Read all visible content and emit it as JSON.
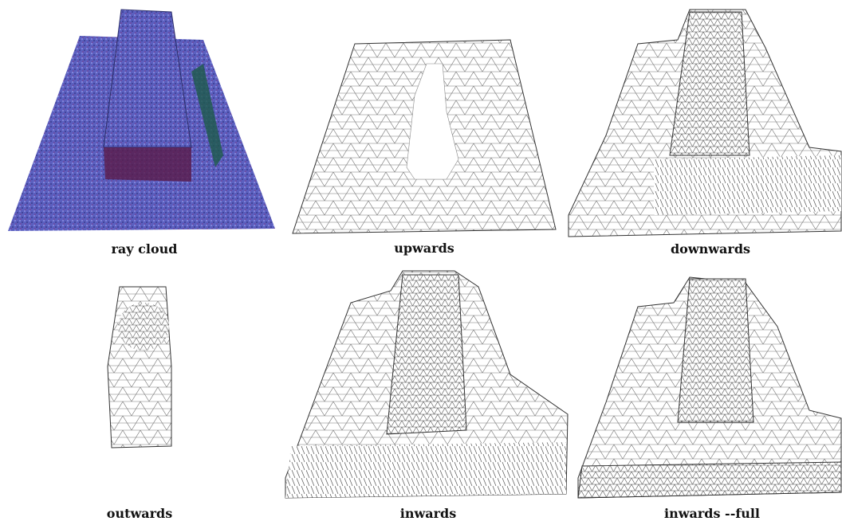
{
  "panels": [
    {
      "caption": "ray cloud"
    },
    {
      "caption": "upwards"
    },
    {
      "caption": "downwards"
    },
    {
      "caption": "outwards"
    },
    {
      "caption": "inwards"
    },
    {
      "caption": "inwards --full"
    }
  ]
}
